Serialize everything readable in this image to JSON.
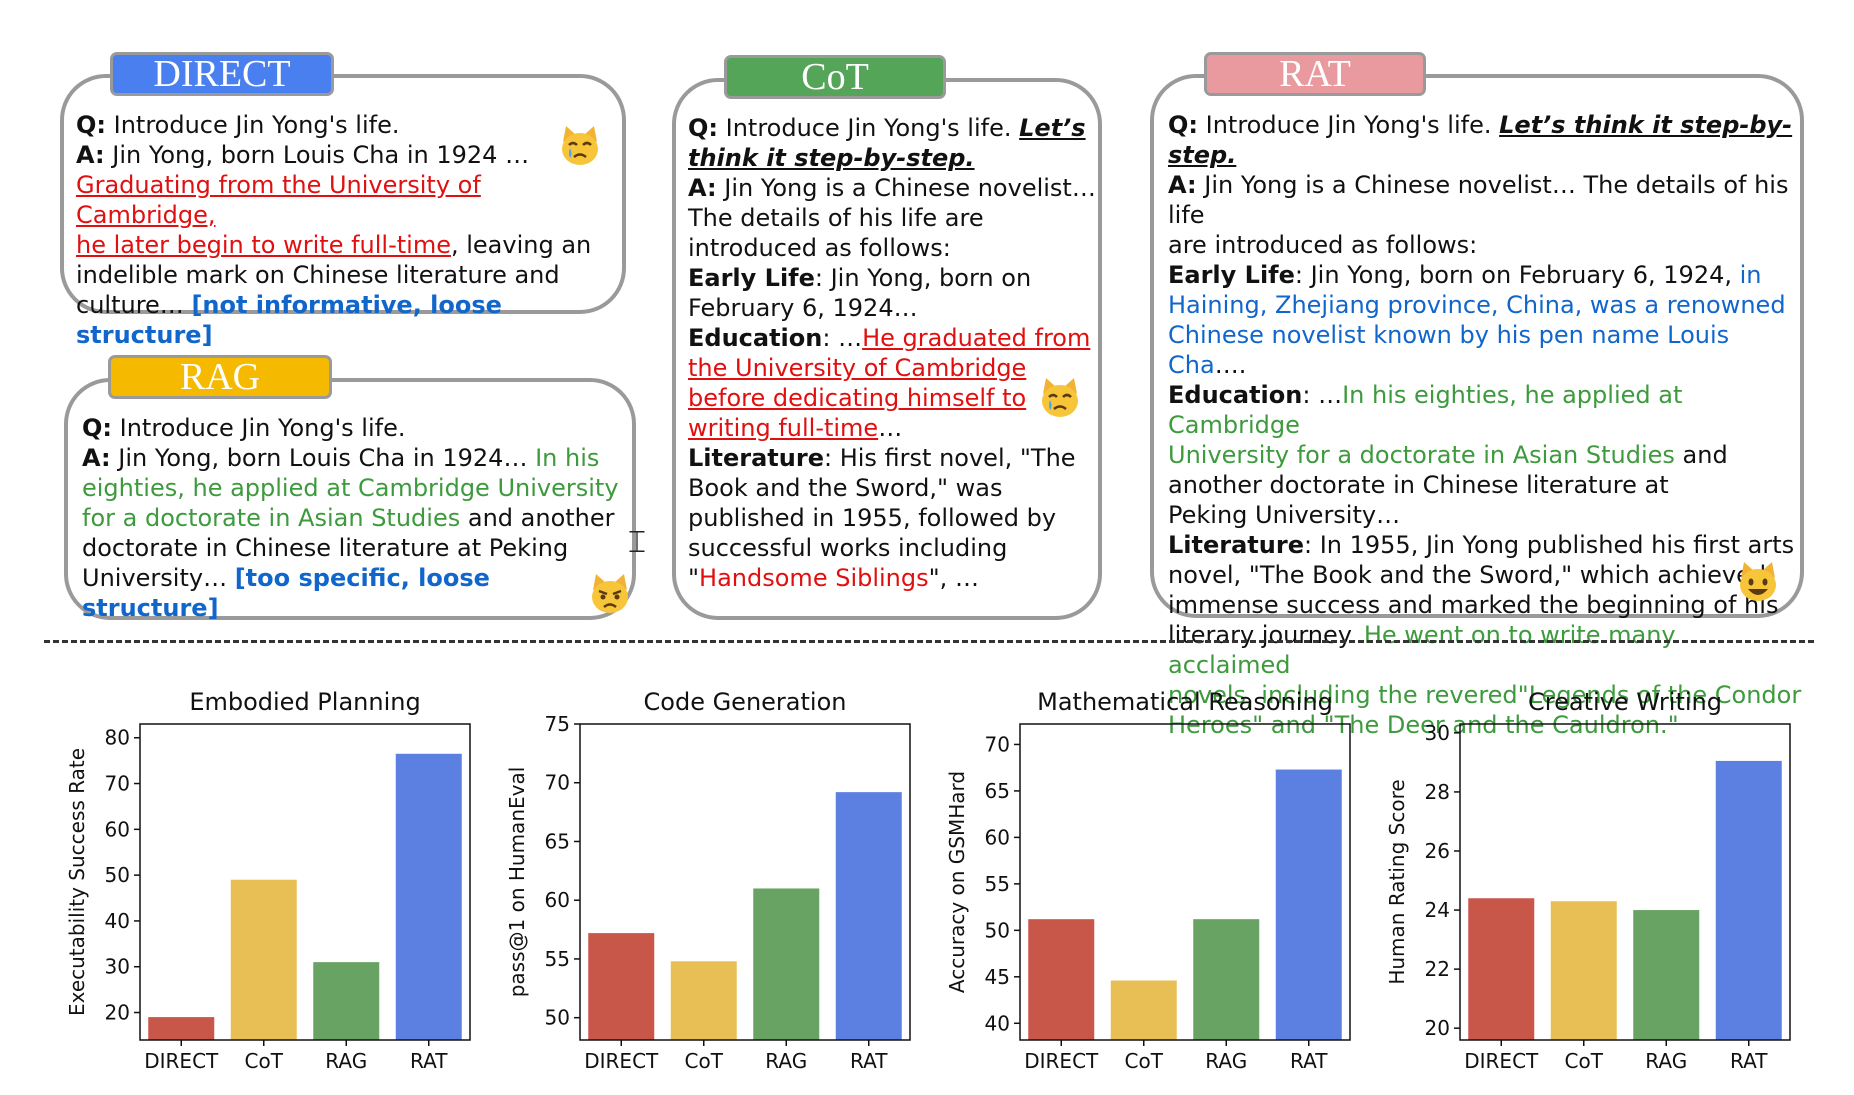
{
  "panels": {
    "direct": {
      "tag": "DIRECT",
      "q_label": "Q:",
      "q_text": " Introduce Jin Yong's life.",
      "a_label": "A:",
      "a_text": "  Jin Yong, born Louis Cha in 1924 …",
      "red_line1": "Graduating from the University of Cambridge,",
      "red_line2": "he later begin to write full-time",
      "tail1": ", leaving an",
      "line4": "indelible mark on Chinese literature and",
      "line5": "culture… ",
      "verdict": "[not informative, loose structure]"
    },
    "rag": {
      "tag": "RAG",
      "q_label": "Q:",
      "q_text": " Introduce Jin Yong's life.",
      "a_label": "A:",
      "a_text": "  Jin Yong, born Louis Cha in 1924… ",
      "green1": "In his",
      "green2": "eighties, he applied at Cambridge University",
      "green3": "for a doctorate in Asian Studies",
      "tail3": " and another",
      "line4": "doctorate in Chinese literature at Peking",
      "line5": "University… ",
      "verdict": "[too specific, loose structure]"
    },
    "cot": {
      "tag": "CoT",
      "q_label": "Q:",
      "q_text": " Introduce Jin Yong's life. ",
      "q_italic1": "Let’s",
      "q_italic2": "think it step-by-step.",
      "a_label": "A:",
      "a_text": " Jin Yong is a Chinese novelist…",
      "l3": "The details of his life are",
      "l4": "introduced as follows:",
      "early_label": "Early Life",
      "early_text": ": Jin Yong, born on",
      "l6": "February 6, 1924…",
      "edu_label": "Education",
      "edu_text": ": …",
      "red1": "He graduated from",
      "red2": "the University of Cambridge",
      "red3": "before dedicating himself to",
      "red4": "writing full-time",
      "red4_tail": "…",
      "lit_label": "Literature",
      "lit_text": ": His first novel, \"The",
      "l12": "Book and the Sword,\" was",
      "l13": "published in 1955, followed by",
      "l14": "successful works including",
      "l15_a": "\"",
      "l15_red": "Handsome Siblings",
      "l15_b": "\", …"
    },
    "rat": {
      "tag": "RAT",
      "q_label": "Q:",
      "q_text": " Introduce Jin Yong's life. ",
      "q_italic": "Let’s think it step-by-step.",
      "a_label": "A:",
      "a_text": " Jin Yong is a Chinese novelist… The details of his life",
      "l3": "are introduced  as follows:",
      "early_label": "Early Life",
      "early_text": ": Jin Yong, born on February 6, 1924, ",
      "blue1": "in",
      "blue2": "Haining, Zhejiang province, China, was a renowned",
      "blue3": "Chinese novelist known by his pen name Louis Cha",
      "blue3_tail": "….",
      "edu_label": "Education",
      "edu_text": ": …",
      "green1": "In his eighties, he applied at Cambridge",
      "green2": "University for a doctorate in Asian Studies",
      "green2_tail": " and",
      "l10": "another doctorate in Chinese literature at",
      "l11": "Peking University…",
      "lit_label": "Literature",
      "lit_text": ":  In 1955, Jin Yong published his first arts",
      "l13": "novel, \"The Book and the Sword,\" which achieved",
      "l14": "immense success and marked the beginning of his",
      "l15": "literary journey. ",
      "green3": "He went on to write many acclaimed",
      "green4": "novels, including the revered\"Legends of the Condor",
      "green5": "Heroes\" and \"The Deer and the Cauldron.\""
    }
  },
  "colors": {
    "direct_tag": "#4a7ff0",
    "cot_tag": "#54a558",
    "rag_tag": "#f5b900",
    "rat_tag": "#e89a9e",
    "bar_direct": "#c8574a",
    "bar_cot": "#e7bf55",
    "bar_rag": "#68a363",
    "bar_rat": "#5b80e2"
  },
  "icons": [
    "crying-cat-icon",
    "pouting-cat-icon",
    "grinning-cat-icon"
  ],
  "chart_data": [
    {
      "type": "bar",
      "title": "Embodied Planning",
      "ylabel": "Executability Success Rate",
      "xlabel": "",
      "categories": [
        "DIRECT",
        "CoT",
        "RAG",
        "RAT"
      ],
      "values": [
        19,
        49,
        31,
        76.5
      ],
      "ylim": [
        14,
        83
      ],
      "yticks": [
        20,
        30,
        40,
        50,
        60,
        70,
        80
      ]
    },
    {
      "type": "bar",
      "title": "Code Generation",
      "ylabel": "pass@1 on HumanEval",
      "xlabel": "",
      "categories": [
        "DIRECT",
        "CoT",
        "RAG",
        "RAT"
      ],
      "values": [
        57.2,
        54.8,
        61,
        69.2
      ],
      "ylim": [
        48.1,
        75
      ],
      "yticks": [
        50,
        55,
        60,
        65,
        70,
        75
      ]
    },
    {
      "type": "bar",
      "title": "Mathematical Reasoning",
      "ylabel": "Accuracy on GSMHard",
      "xlabel": "",
      "categories": [
        "DIRECT",
        "CoT",
        "RAG",
        "RAT"
      ],
      "values": [
        51.2,
        44.6,
        51.2,
        67.3
      ],
      "ylim": [
        38.2,
        72.2
      ],
      "yticks": [
        40,
        45,
        50,
        55,
        60,
        65,
        70
      ]
    },
    {
      "type": "bar",
      "title": "Creative Writing",
      "ylabel": "Human Rating Score",
      "xlabel": "",
      "categories": [
        "DIRECT",
        "CoT",
        "RAG",
        "RAT"
      ],
      "values": [
        24.4,
        24.3,
        24,
        29.05
      ],
      "ylim": [
        19.6,
        30.3
      ],
      "yticks": [
        20,
        22,
        24,
        26,
        28,
        30
      ]
    }
  ]
}
